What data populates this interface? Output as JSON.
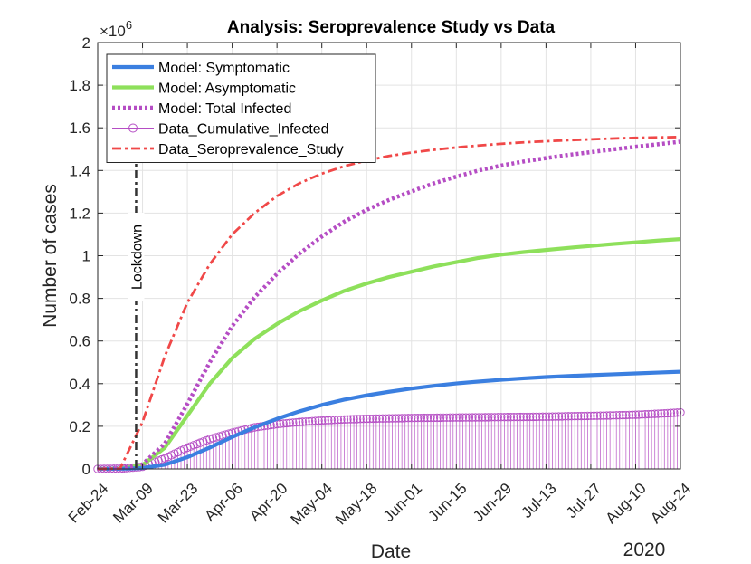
{
  "chart_data": {
    "type": "line",
    "title": "Analysis: Seroprevalence Study vs Data",
    "xlabel": "Date",
    "ylabel": "Number of cases",
    "year_label": "2020",
    "exponent_prefix": "×10",
    "exponent_power": "6",
    "ylim": [
      0,
      2
    ],
    "yticks": [
      0,
      0.2,
      0.4,
      0.6,
      0.8,
      1,
      1.2,
      1.4,
      1.6,
      1.8,
      2
    ],
    "ytick_labels": [
      "0",
      "0.2",
      "0.4",
      "0.6",
      "0.8",
      "1",
      "1.2",
      "1.4",
      "1.6",
      "1.8",
      "2"
    ],
    "xlim": [
      0,
      182
    ],
    "xticks": [
      0,
      14,
      28,
      42,
      56,
      70,
      84,
      98,
      112,
      126,
      140,
      154,
      168,
      182
    ],
    "xtick_labels": [
      "Feb-24",
      "Mar-09",
      "Mar-23",
      "Apr-06",
      "Apr-20",
      "May-04",
      "May-18",
      "Jun-01",
      "Jun-15",
      "Jun-29",
      "Jul-13",
      "Jul-27",
      "Aug-10",
      "Aug-24"
    ],
    "grid": true,
    "legend_position": "top-left",
    "annotation": {
      "text": "Lockdown",
      "x": 12
    },
    "x": [
      0,
      7,
      14,
      21,
      28,
      35,
      42,
      49,
      56,
      63,
      70,
      77,
      84,
      91,
      98,
      105,
      112,
      119,
      126,
      133,
      140,
      147,
      154,
      161,
      168,
      175,
      182
    ],
    "series": [
      {
        "name": "Model: Symptomatic",
        "color": "#3B7FE0",
        "style": "solid",
        "values": [
          0,
          0.0005,
          0.004,
          0.02,
          0.055,
          0.1,
          0.15,
          0.195,
          0.235,
          0.27,
          0.3,
          0.325,
          0.345,
          0.362,
          0.377,
          0.39,
          0.401,
          0.41,
          0.418,
          0.425,
          0.431,
          0.436,
          0.44,
          0.444,
          0.448,
          0.452,
          0.456
        ]
      },
      {
        "name": "Model: Asymptomatic",
        "color": "#8EE05B",
        "style": "solid",
        "values": [
          0,
          0.002,
          0.018,
          0.1,
          0.25,
          0.4,
          0.52,
          0.61,
          0.68,
          0.74,
          0.79,
          0.835,
          0.87,
          0.9,
          0.925,
          0.95,
          0.97,
          0.99,
          1.005,
          1.017,
          1.027,
          1.037,
          1.046,
          1.055,
          1.063,
          1.071,
          1.078
        ]
      },
      {
        "name": "Model: Total Infected",
        "color": "#B54DC4",
        "style": "dotted",
        "values": [
          0,
          0.003,
          0.022,
          0.12,
          0.305,
          0.5,
          0.67,
          0.805,
          0.915,
          1.01,
          1.09,
          1.16,
          1.215,
          1.262,
          1.302,
          1.34,
          1.371,
          1.4,
          1.423,
          1.442,
          1.458,
          1.473,
          1.486,
          1.499,
          1.511,
          1.523,
          1.535
        ]
      },
      {
        "name": "Data_Cumulative_Infected",
        "color": "#B54DC4",
        "style": "stem",
        "values": [
          0,
          0.001,
          0.01,
          0.05,
          0.1,
          0.14,
          0.17,
          0.195,
          0.21,
          0.22,
          0.227,
          0.232,
          0.235,
          0.237,
          0.239,
          0.24,
          0.241,
          0.242,
          0.243,
          0.244,
          0.245,
          0.247,
          0.249,
          0.251,
          0.254,
          0.259,
          0.265
        ]
      },
      {
        "name": "Data_Seroprevalence_Study",
        "color": "#F04848",
        "style": "dashdot",
        "values": [
          0,
          0.002,
          0.22,
          0.53,
          0.78,
          0.96,
          1.1,
          1.2,
          1.28,
          1.34,
          1.385,
          1.42,
          1.447,
          1.468,
          1.484,
          1.497,
          1.508,
          1.517,
          1.525,
          1.532,
          1.537,
          1.542,
          1.546,
          1.55,
          1.553,
          1.555,
          1.557
        ]
      }
    ]
  }
}
